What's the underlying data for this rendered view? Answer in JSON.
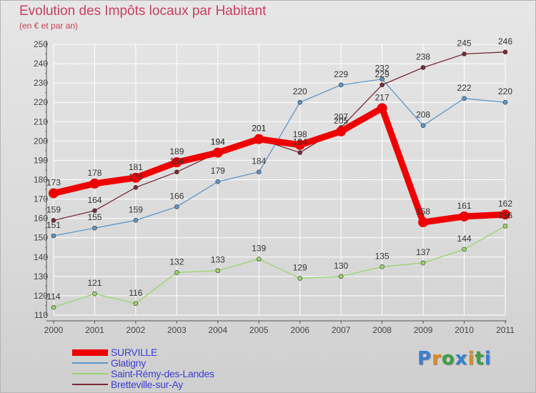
{
  "header": {
    "title": "Evolution des Impôts locaux par Habitant",
    "subtitle": "(en € et par an)"
  },
  "colors": {
    "title": "#c9405e",
    "legend_text": "#3d3dd4",
    "grid": "#ffffff",
    "axis": "#555555"
  },
  "logo": {
    "letters": [
      "P",
      "r",
      "o",
      "x",
      "i",
      "t",
      "i"
    ],
    "colors": [
      "#3a7fd0",
      "#e08a1e",
      "#3fa03f",
      "#3a7fd0",
      "#e08a1e",
      "#3fa03f",
      "#3a7fd0"
    ]
  },
  "chart_data": {
    "type": "line",
    "title": "Evolution des Impôts locaux par Habitant",
    "subtitle": "(en € et par an)",
    "xlabel": "",
    "ylabel": "",
    "x": [
      "2000",
      "2001",
      "2002",
      "2003",
      "2004",
      "2005",
      "2006",
      "2007",
      "2008",
      "2009",
      "2010",
      "2011"
    ],
    "yticks": [
      110,
      120,
      130,
      140,
      150,
      160,
      170,
      180,
      190,
      200,
      210,
      220,
      230,
      240,
      250
    ],
    "ylim": [
      110,
      250
    ],
    "grid": true,
    "legend_position": "bottom-left",
    "series": [
      {
        "name": "SURVILLE",
        "color": "#ee0000",
        "width": 9,
        "marker": 7,
        "values": [
          173,
          178,
          181,
          189,
          194,
          201,
          198,
          205,
          217,
          158,
          161,
          162
        ]
      },
      {
        "name": "Glatigny",
        "color": "#5f95c6",
        "width": 1.3,
        "marker": 3,
        "values": [
          151,
          155,
          159,
          166,
          179,
          184,
          220,
          229,
          232,
          208,
          222,
          220
        ]
      },
      {
        "name": "Saint-Rémy-des-Landes",
        "color": "#9ad36a",
        "width": 1.3,
        "marker": 3,
        "values": [
          114,
          121,
          116,
          132,
          133,
          139,
          129,
          130,
          135,
          137,
          144,
          156
        ]
      },
      {
        "name": "Bretteville-sur-Ay",
        "color": "#7a2a35",
        "width": 1.3,
        "marker": 3,
        "values": [
          159,
          164,
          176,
          184,
          194,
          201,
          194,
          207,
          229,
          238,
          245,
          246
        ]
      }
    ]
  }
}
